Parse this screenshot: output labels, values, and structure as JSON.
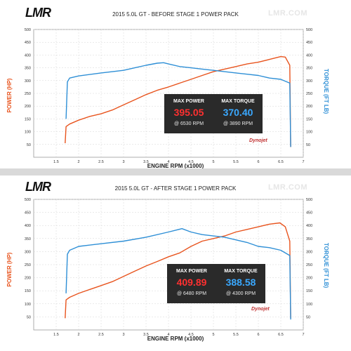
{
  "logo_text": "LMR",
  "watermark": "LMR.COM",
  "brand_mark": "Dynojet",
  "colors": {
    "power": "#e8541e",
    "torque": "#2e8fd6",
    "box_bg": "#2a2a2a",
    "power_value": "#ff3030",
    "torque_value": "#3aa8ff"
  },
  "chart_data": [
    {
      "type": "line",
      "title": "2015 5.0L GT - BEFORE STAGE 1 POWER PACK",
      "xlabel": "ENGINE RPM (x1000)",
      "ylabel_left": "POWER (HP)",
      "ylabel_right": "TORQUE (FT LB)",
      "xlim": [
        1,
        7
      ],
      "ylim": [
        0,
        500
      ],
      "xticks": [
        "1.5",
        "2",
        "2.5",
        "3",
        "3.5",
        "4",
        "4.5",
        "5",
        "5.5",
        "6",
        "6.5",
        "7"
      ],
      "yticks": [
        "50",
        "100",
        "150",
        "200",
        "250",
        "300",
        "350",
        "400",
        "450",
        "500"
      ],
      "grid": true,
      "series": [
        {
          "name": "POWER (HP)",
          "x": [
            1.7,
            1.72,
            1.8,
            2.0,
            2.25,
            2.5,
            2.75,
            3.0,
            3.25,
            3.5,
            3.75,
            4.0,
            4.25,
            4.5,
            4.75,
            5.0,
            5.25,
            5.5,
            5.75,
            6.0,
            6.25,
            6.5,
            6.6,
            6.7,
            6.72
          ],
          "y": [
            55,
            120,
            130,
            145,
            160,
            170,
            185,
            205,
            225,
            245,
            262,
            275,
            290,
            305,
            320,
            335,
            345,
            355,
            365,
            372,
            383,
            394,
            392,
            360,
            40
          ]
        },
        {
          "name": "TORQUE (FT LB)",
          "x": [
            1.72,
            1.75,
            1.8,
            2.0,
            2.5,
            3.0,
            3.25,
            3.5,
            3.75,
            3.89,
            4.0,
            4.25,
            4.5,
            4.75,
            5.0,
            5.25,
            5.5,
            5.75,
            6.0,
            6.25,
            6.5,
            6.7,
            6.72
          ],
          "y": [
            150,
            295,
            310,
            318,
            330,
            340,
            350,
            360,
            368,
            370,
            365,
            355,
            350,
            345,
            340,
            335,
            330,
            325,
            320,
            310,
            305,
            290,
            40
          ]
        }
      ],
      "max_power_label": "MAX POWER",
      "max_power_value": "395.05",
      "max_power_rpm": "@ 6530 RPM",
      "max_torque_label": "MAX TORQUE",
      "max_torque_value": "370.40",
      "max_torque_rpm": "@ 3890 RPM"
    },
    {
      "type": "line",
      "title": "2015 5.0L GT - AFTER STAGE 1 POWER PACK",
      "xlabel": "ENGINE RPM (x1000)",
      "ylabel_left": "POWER (HP)",
      "ylabel_right": "TORQUE (FT LB)",
      "xlim": [
        1,
        7
      ],
      "ylim": [
        0,
        500
      ],
      "xticks": [
        "1.5",
        "2",
        "2.5",
        "3",
        "3.5",
        "4",
        "4.5",
        "5",
        "5.5",
        "6",
        "6.5",
        "7"
      ],
      "yticks": [
        "50",
        "100",
        "150",
        "200",
        "250",
        "300",
        "350",
        "400",
        "450",
        "500"
      ],
      "grid": true,
      "series": [
        {
          "name": "POWER (HP)",
          "x": [
            1.7,
            1.72,
            1.8,
            2.0,
            2.25,
            2.5,
            2.75,
            3.0,
            3.25,
            3.5,
            3.75,
            4.0,
            4.25,
            4.5,
            4.75,
            5.0,
            5.25,
            5.5,
            5.75,
            6.0,
            6.25,
            6.48,
            6.6,
            6.7,
            6.72
          ],
          "y": [
            45,
            115,
            125,
            140,
            155,
            170,
            185,
            205,
            225,
            245,
            262,
            280,
            295,
            320,
            340,
            350,
            360,
            375,
            385,
            395,
            405,
            410,
            395,
            340,
            45
          ]
        },
        {
          "name": "TORQUE (FT LB)",
          "x": [
            1.72,
            1.75,
            1.8,
            2.0,
            2.5,
            3.0,
            3.5,
            4.0,
            4.3,
            4.5,
            4.75,
            5.0,
            5.25,
            5.5,
            5.75,
            6.0,
            6.25,
            6.5,
            6.7,
            6.72
          ],
          "y": [
            140,
            290,
            305,
            320,
            330,
            340,
            355,
            375,
            388,
            375,
            365,
            360,
            355,
            345,
            335,
            320,
            315,
            305,
            285,
            40
          ]
        }
      ],
      "max_power_label": "MAX POWER",
      "max_power_value": "409.89",
      "max_power_rpm": "@ 6480 RPM",
      "max_torque_label": "MAX TORQUE",
      "max_torque_value": "388.58",
      "max_torque_rpm": "@ 4300 RPM"
    }
  ]
}
